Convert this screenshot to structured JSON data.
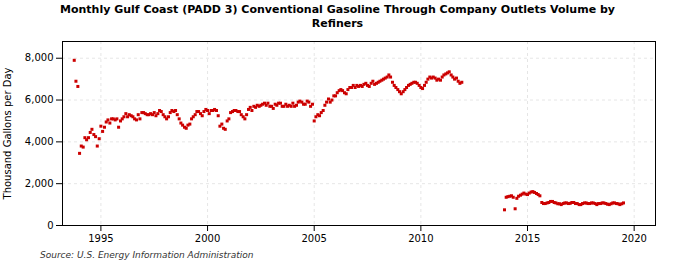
{
  "chart_data": {
    "type": "scatter",
    "title": "Monthly Gulf Coast (PADD 3) Conventional Gasoline Through Company Outlets Volume by\nRefiners",
    "ylabel": "Thousand Gallons per Day",
    "source": "Source: U.S. Energy Information Administration",
    "xlim": [
      1993.2,
      2021.0
    ],
    "ylim": [
      0,
      8800
    ],
    "xticks": [
      1995,
      2000,
      2005,
      2010,
      2015,
      2020
    ],
    "yticks": [
      0,
      {
        "value": 2000,
        "label": "2,000"
      },
      {
        "value": 4000,
        "label": "4,000"
      },
      {
        "value": 6000,
        "label": "6,000"
      },
      {
        "value": 8000,
        "label": "8,000"
      }
    ],
    "grid": true,
    "series": [
      {
        "color": "#cc0000",
        "marker": "square",
        "x": [
          1993.75,
          1993.83,
          1993.92,
          1994.0,
          1994.08,
          1994.17,
          1994.25,
          1994.33,
          1994.42,
          1994.5,
          1994.58,
          1994.67,
          1994.75,
          1994.83,
          1994.92,
          1995.0,
          1995.08,
          1995.17,
          1995.25,
          1995.33,
          1995.42,
          1995.5,
          1995.58,
          1995.67,
          1995.75,
          1995.83,
          1995.92,
          1996.0,
          1996.08,
          1996.17,
          1996.25,
          1996.33,
          1996.42,
          1996.5,
          1996.58,
          1996.67,
          1996.75,
          1996.83,
          1996.92,
          1997.0,
          1997.08,
          1997.17,
          1997.25,
          1997.33,
          1997.42,
          1997.5,
          1997.58,
          1997.67,
          1997.75,
          1997.83,
          1997.92,
          1998.0,
          1998.08,
          1998.17,
          1998.25,
          1998.33,
          1998.42,
          1998.5,
          1998.58,
          1998.67,
          1998.75,
          1998.83,
          1998.92,
          1999.0,
          1999.08,
          1999.17,
          1999.25,
          1999.33,
          1999.42,
          1999.5,
          1999.58,
          1999.67,
          1999.75,
          1999.83,
          1999.92,
          2000.0,
          2000.08,
          2000.17,
          2000.25,
          2000.33,
          2000.42,
          2000.5,
          2000.58,
          2000.67,
          2000.75,
          2000.83,
          2000.92,
          2001.0,
          2001.08,
          2001.17,
          2001.25,
          2001.33,
          2001.42,
          2001.5,
          2001.58,
          2001.67,
          2001.75,
          2001.83,
          2001.92,
          2002.0,
          2002.08,
          2002.17,
          2002.25,
          2002.33,
          2002.42,
          2002.5,
          2002.58,
          2002.67,
          2002.75,
          2002.83,
          2002.92,
          2003.0,
          2003.08,
          2003.17,
          2003.25,
          2003.33,
          2003.42,
          2003.5,
          2003.58,
          2003.67,
          2003.75,
          2003.83,
          2003.92,
          2004.0,
          2004.08,
          2004.17,
          2004.25,
          2004.33,
          2004.42,
          2004.5,
          2004.58,
          2004.67,
          2004.75,
          2004.83,
          2004.92,
          2005.0,
          2005.08,
          2005.17,
          2005.25,
          2005.33,
          2005.42,
          2005.5,
          2005.58,
          2005.67,
          2005.75,
          2005.83,
          2005.92,
          2006.0,
          2006.08,
          2006.17,
          2006.25,
          2006.33,
          2006.42,
          2006.5,
          2006.58,
          2006.67,
          2006.75,
          2006.83,
          2006.92,
          2007.0,
          2007.08,
          2007.17,
          2007.25,
          2007.33,
          2007.42,
          2007.5,
          2007.58,
          2007.67,
          2007.75,
          2007.83,
          2007.92,
          2008.0,
          2008.08,
          2008.17,
          2008.25,
          2008.33,
          2008.42,
          2008.5,
          2008.58,
          2008.67,
          2008.75,
          2008.83,
          2008.92,
          2009.0,
          2009.08,
          2009.17,
          2009.25,
          2009.33,
          2009.42,
          2009.5,
          2009.58,
          2009.67,
          2009.75,
          2009.83,
          2009.92,
          2010.0,
          2010.08,
          2010.17,
          2010.25,
          2010.33,
          2010.42,
          2010.5,
          2010.58,
          2010.67,
          2010.75,
          2010.83,
          2010.92,
          2011.0,
          2011.08,
          2011.17,
          2011.25,
          2011.33,
          2011.42,
          2011.5,
          2011.58,
          2011.67,
          2011.75,
          2011.83,
          2011.92
        ],
        "values": [
          7900,
          6900,
          6650,
          3450,
          3800,
          3750,
          4200,
          4100,
          4200,
          4450,
          4600,
          4350,
          4250,
          3800,
          4150,
          4750,
          4500,
          4700,
          4950,
          5050,
          4900,
          5100,
          5100,
          5050,
          5100,
          4700,
          5000,
          5100,
          5200,
          5350,
          5200,
          5300,
          5250,
          5200,
          5100,
          5050,
          5300,
          5100,
          5400,
          5400,
          5350,
          5300,
          5300,
          5350,
          5300,
          5400,
          5250,
          5350,
          5500,
          5450,
          5300,
          5200,
          5100,
          5200,
          5400,
          5500,
          5450,
          5500,
          5300,
          5100,
          4900,
          4800,
          4700,
          4650,
          4800,
          4850,
          5100,
          5200,
          5300,
          5450,
          5450,
          5350,
          5250,
          5450,
          5550,
          5500,
          5350,
          5500,
          5500,
          5550,
          5500,
          5250,
          4750,
          4850,
          4650,
          4600,
          5000,
          5100,
          5400,
          5450,
          5500,
          5500,
          5450,
          5450,
          5300,
          5200,
          5100,
          5300,
          5550,
          5650,
          5500,
          5700,
          5650,
          5750,
          5700,
          5750,
          5800,
          5850,
          5750,
          5850,
          5700,
          5700,
          5600,
          5800,
          5750,
          5850,
          5850,
          5700,
          5700,
          5800,
          5700,
          5750,
          5700,
          5850,
          5700,
          5750,
          5900,
          5950,
          5900,
          5800,
          5800,
          5950,
          5900,
          5700,
          5800,
          5000,
          5200,
          5300,
          5250,
          5400,
          5500,
          5750,
          5900,
          6050,
          5900,
          6000,
          6200,
          6200,
          6350,
          6450,
          6500,
          6450,
          6350,
          6300,
          6500,
          6600,
          6600,
          6700,
          6600,
          6700,
          6650,
          6700,
          6650,
          6750,
          6800,
          6700,
          6650,
          6800,
          6900,
          6750,
          6800,
          6850,
          6900,
          6950,
          7000,
          7050,
          7100,
          7200,
          7100,
          6850,
          6700,
          6600,
          6500,
          6400,
          6300,
          6400,
          6500,
          6600,
          6700,
          6750,
          6800,
          6850,
          6850,
          6800,
          6700,
          6600,
          6550,
          6700,
          6850,
          7000,
          7100,
          7050,
          7100,
          7050,
          6950,
          7000,
          6950,
          7100,
          7200,
          7250,
          7300,
          7350,
          7200,
          7100,
          7000,
          7050,
          6900,
          6800,
          6850
        ]
      },
      {
        "color": "#cc0000",
        "marker": "square",
        "x": [
          2013.92,
          2014.0,
          2014.08,
          2014.17,
          2014.25,
          2014.33,
          2014.42,
          2014.5,
          2014.58,
          2014.67,
          2014.75,
          2014.83,
          2014.92,
          2015.0,
          2015.08,
          2015.17,
          2015.25,
          2015.33,
          2015.42,
          2015.5,
          2015.58,
          2015.67,
          2015.75,
          2015.83,
          2015.92,
          2016.0,
          2016.08,
          2016.17,
          2016.25,
          2016.33,
          2016.42,
          2016.5,
          2016.58,
          2016.67,
          2016.75,
          2016.83,
          2016.92,
          2017.0,
          2017.08,
          2017.17,
          2017.25,
          2017.33,
          2017.42,
          2017.5,
          2017.58,
          2017.67,
          2017.75,
          2017.83,
          2017.92,
          2018.0,
          2018.08,
          2018.17,
          2018.25,
          2018.33,
          2018.42,
          2018.5,
          2018.58,
          2018.67,
          2018.75,
          2018.83,
          2018.92,
          2019.0,
          2019.08,
          2019.17,
          2019.25,
          2019.33,
          2019.42,
          2019.5
        ],
        "values": [
          750,
          1350,
          1380,
          1400,
          1420,
          1350,
          800,
          1300,
          1400,
          1450,
          1500,
          1550,
          1500,
          1480,
          1550,
          1600,
          1620,
          1580,
          1530,
          1480,
          1420,
          1100,
          1050,
          1050,
          1080,
          1100,
          1150,
          1150,
          1100,
          1080,
          1040,
          1040,
          1000,
          1050,
          1080,
          1080,
          1050,
          1060,
          1100,
          1100,
          1050,
          1050,
          1000,
          1000,
          1050,
          1080,
          1080,
          1050,
          1050,
          1080,
          1080,
          1050,
          1000,
          1050,
          1050,
          1080,
          1080,
          1050,
          1020,
          1000,
          1040,
          1080,
          1080,
          1050,
          1040,
          1000,
          1040,
          1080
        ]
      }
    ]
  }
}
